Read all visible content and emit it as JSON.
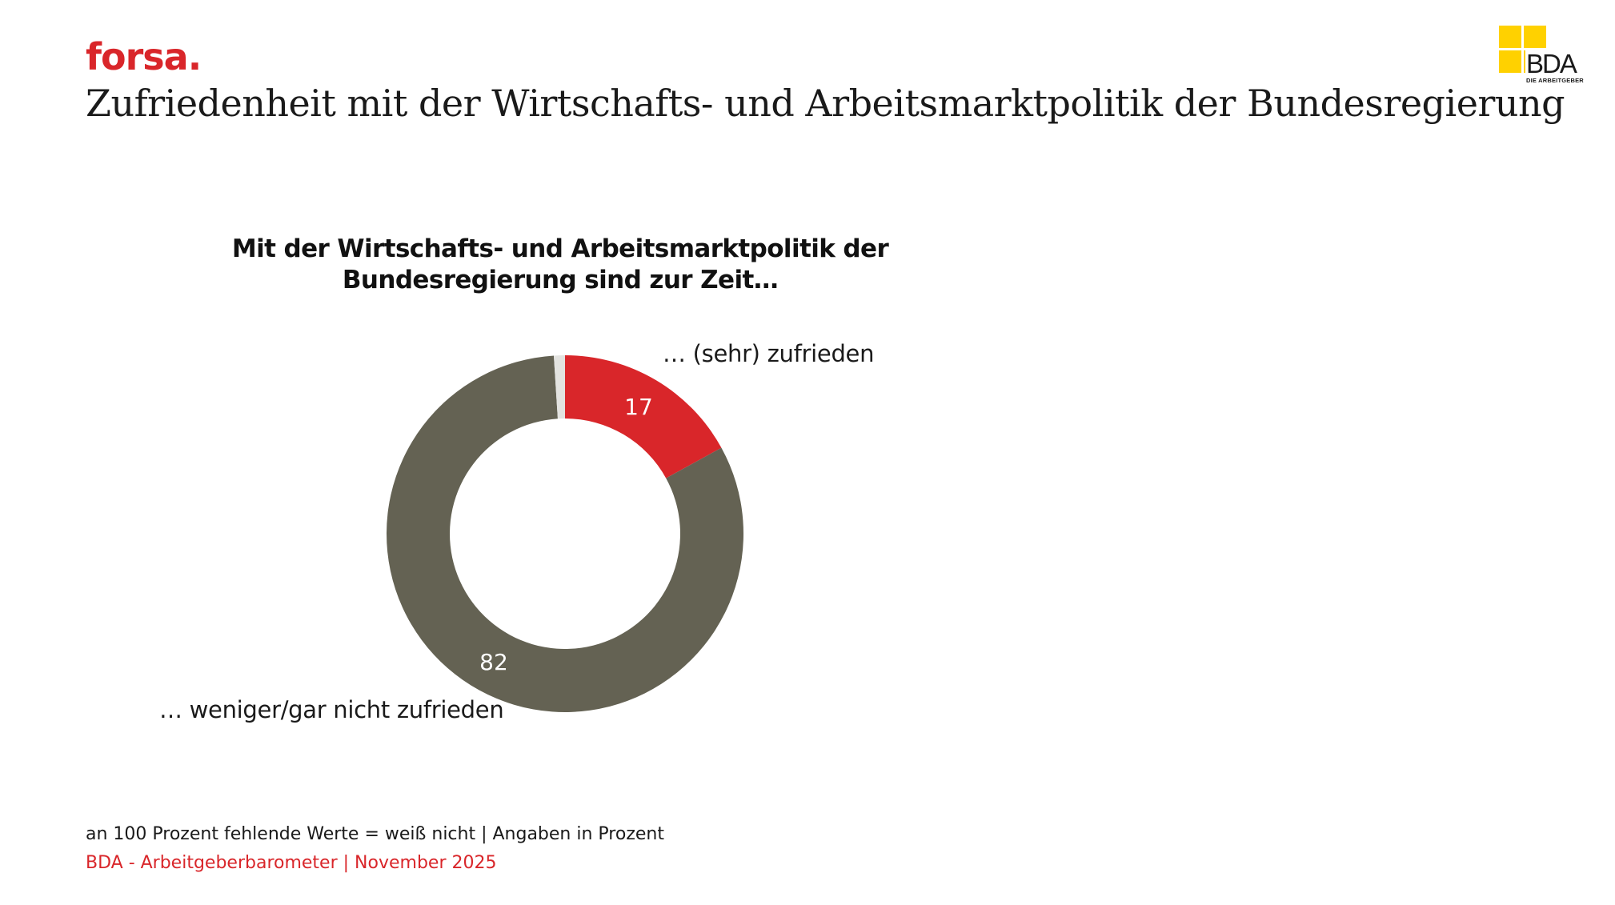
{
  "header": {
    "brand": "forsa.",
    "title": "Zufriedenheit mit der Wirtschafts- und Arbeitsmarktpolitik der Bundesregierung"
  },
  "logo": {
    "text": "BDA",
    "subtitle": "DIE ARBEITGEBER",
    "color": "#ffd100"
  },
  "chart_data": {
    "type": "pie",
    "variant": "donut",
    "title_lines": [
      "Mit der Wirtschafts- und Arbeitsmarktpolitik der",
      "Bundesregierung sind zur Zeit…"
    ],
    "slices": [
      {
        "label": "… (sehr) zufrieden",
        "value": 17,
        "value_label": "17",
        "color": "#d9262a"
      },
      {
        "label": "… weniger/gar nicht zufrieden",
        "value": 82,
        "value_label": "82",
        "color": "#646253"
      },
      {
        "label": "",
        "value": 1,
        "value_label": "",
        "color": "#e3e3e0"
      }
    ]
  },
  "footer": {
    "note": "an 100 Prozent fehlende Werte = weiß nicht | Angaben in Prozent",
    "source": "BDA - Arbeitgeberbarometer | November 2025"
  }
}
